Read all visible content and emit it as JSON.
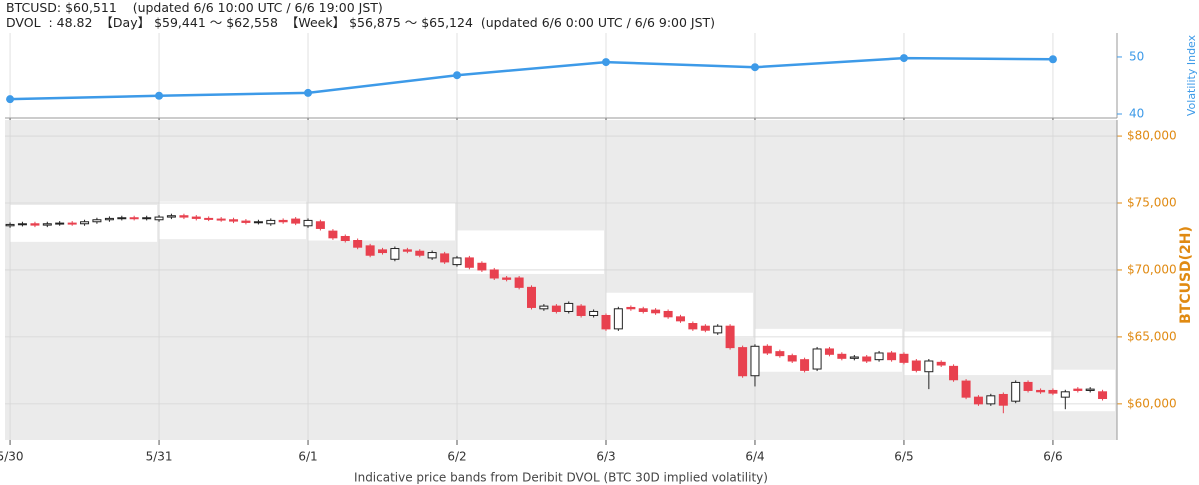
{
  "header": {
    "price": "BTCUSD: $60,511",
    "price_updated": "(updated 6/6 10:00 UTC / 6/6 19:00 JST)",
    "dvol": "DVOL  : 48.82",
    "day_range": "【Day】 $59,441 〜 $62,558",
    "week_range": "【Week】 $56,875 〜 $65,124",
    "dvol_updated": "(updated 6/6 0:00 UTC / 6/6 9:00 JST)"
  },
  "chart_data": [
    {
      "type": "line",
      "y_label": "Volatility Index",
      "color": "#3d9ae8",
      "x": [
        0,
        1,
        2,
        3,
        4,
        5,
        6,
        7
      ],
      "values": [
        42.6,
        43.2,
        43.7,
        46.8,
        49.1,
        48.2,
        49.8,
        49.6
      ],
      "xlim": [
        -0.034,
        7.43
      ],
      "xticks": [
        0,
        1,
        2,
        3,
        4,
        5,
        6,
        7
      ],
      "ylim": [
        39.3,
        54.2
      ],
      "yticks": [
        40,
        50
      ],
      "grid": true
    },
    {
      "type": "candlestick",
      "y_label": "BTCUSD(2H)",
      "x_label": "Indicative price bands from Deribit DVOL (BTC 30D implied volatility)",
      "up_color": "#ffffff",
      "down_color": "#e8414f",
      "band_color": "#ffffff",
      "background": "#ebebeb",
      "xlim": [
        -0.034,
        7.43
      ],
      "xticks": [
        {
          "value": 0,
          "label": "5/30"
        },
        {
          "value": 1,
          "label": "5/31"
        },
        {
          "value": 2,
          "label": "6/1"
        },
        {
          "value": 3,
          "label": "6/2"
        },
        {
          "value": 4,
          "label": "6/3"
        },
        {
          "value": 5,
          "label": "6/4"
        },
        {
          "value": 6,
          "label": "6/5"
        },
        {
          "value": 7,
          "label": "6/6"
        }
      ],
      "ylim": [
        57300,
        81200
      ],
      "yticks": [
        {
          "value": 60000,
          "label": "$60,000"
        },
        {
          "value": 65000,
          "label": "$65,000"
        },
        {
          "value": 70000,
          "label": "$70,000"
        },
        {
          "value": 75000,
          "label": "$75,000"
        },
        {
          "value": 80000,
          "label": "$80,000"
        }
      ],
      "bands": {
        "x": [
          0,
          1,
          2,
          3,
          4,
          5,
          6,
          7
        ],
        "x_end": [
          1,
          2,
          3,
          4,
          5,
          6,
          7,
          7.43
        ],
        "low": [
          72100,
          72300,
          72200,
          69700,
          64950,
          62400,
          62150,
          59450
        ],
        "high": [
          74850,
          75100,
          75000,
          72950,
          68300,
          65600,
          65400,
          62550
        ]
      },
      "x": [
        0,
        0.083,
        0.167,
        0.25,
        0.333,
        0.417,
        0.5,
        0.583,
        0.667,
        0.75,
        0.833,
        0.917,
        1,
        1.083,
        1.167,
        1.25,
        1.333,
        1.417,
        1.5,
        1.583,
        1.667,
        1.75,
        1.833,
        1.917,
        2,
        2.083,
        2.167,
        2.25,
        2.333,
        2.417,
        2.5,
        2.583,
        2.667,
        2.75,
        2.833,
        2.917,
        3,
        3.083,
        3.167,
        3.25,
        3.333,
        3.417,
        3.5,
        3.583,
        3.667,
        3.75,
        3.833,
        3.917,
        4,
        4.083,
        4.167,
        4.25,
        4.333,
        4.417,
        4.5,
        4.583,
        4.667,
        4.75,
        4.833,
        4.917,
        5,
        5.083,
        5.167,
        5.25,
        5.333,
        5.417,
        5.5,
        5.583,
        5.667,
        5.75,
        5.833,
        5.917,
        6,
        6.083,
        6.167,
        6.25,
        6.333,
        6.417,
        6.5,
        6.583,
        6.667,
        6.75,
        6.833,
        6.917,
        7,
        7.083,
        7.167,
        7.25,
        7.333
      ],
      "open": [
        73300,
        73400,
        73450,
        73350,
        73450,
        73500,
        73450,
        73600,
        73750,
        73850,
        73900,
        73850,
        73750,
        73950,
        74050,
        73950,
        73850,
        73800,
        73750,
        73650,
        73550,
        73450,
        73700,
        73800,
        73300,
        73600,
        72900,
        72500,
        72200,
        71800,
        71500,
        70800,
        71500,
        71400,
        70900,
        71200,
        70400,
        70900,
        70500,
        70000,
        69400,
        69400,
        68700,
        67100,
        67300,
        66900,
        67300,
        66600,
        66600,
        65600,
        67200,
        67100,
        67000,
        66900,
        66500,
        66000,
        65800,
        65300,
        65800,
        64200,
        62100,
        64300,
        63900,
        63600,
        63300,
        62600,
        64100,
        63700,
        63400,
        63500,
        63300,
        63800,
        63700,
        63200,
        62400,
        63100,
        62800,
        61700,
        60500,
        60000,
        60700,
        60200,
        61600,
        61000,
        61000,
        60500,
        61100,
        61000,
        60900
      ],
      "high": [
        73550,
        73600,
        73600,
        73600,
        73650,
        73650,
        73750,
        73900,
        74000,
        74050,
        74050,
        74050,
        74100,
        74200,
        74200,
        74100,
        74000,
        73950,
        73900,
        73800,
        73750,
        73850,
        73850,
        73950,
        73850,
        73750,
        73050,
        72650,
        72350,
        71950,
        71650,
        71750,
        71650,
        71550,
        71450,
        71350,
        71050,
        71050,
        70650,
        70150,
        69550,
        69550,
        68850,
        67450,
        67450,
        67650,
        67450,
        67050,
        66750,
        67250,
        67350,
        67250,
        67150,
        67050,
        66650,
        66150,
        65950,
        65950,
        65950,
        64350,
        64450,
        64450,
        64050,
        63750,
        63450,
        64250,
        64250,
        63850,
        63650,
        63650,
        63950,
        63950,
        63850,
        63350,
        63350,
        63250,
        62950,
        61850,
        60650,
        60750,
        60850,
        61750,
        61750,
        61150,
        61150,
        61050,
        61250,
        61250,
        61050
      ],
      "low": [
        73150,
        73250,
        73200,
        73200,
        73300,
        73300,
        73300,
        73450,
        73600,
        73700,
        73700,
        73700,
        73600,
        73800,
        73800,
        73700,
        73650,
        73600,
        73500,
        73400,
        73400,
        73300,
        73450,
        73350,
        73150,
        72950,
        72250,
        72050,
        71550,
        70950,
        71150,
        70650,
        71250,
        70950,
        70750,
        70450,
        70250,
        70050,
        69850,
        69250,
        69150,
        68550,
        67050,
        66950,
        66750,
        66750,
        66450,
        66450,
        65450,
        65450,
        66950,
        66750,
        66650,
        66350,
        66050,
        65450,
        65350,
        65150,
        64050,
        61950,
        61300,
        63650,
        63450,
        63050,
        62350,
        62450,
        63550,
        63250,
        63250,
        63050,
        63150,
        63150,
        62950,
        62350,
        61100,
        62750,
        61650,
        60350,
        59850,
        59850,
        59300,
        60050,
        60850,
        60750,
        60650,
        59600,
        60850,
        60850,
        60250
      ],
      "close": [
        73400,
        73450,
        73350,
        73450,
        73500,
        73450,
        73600,
        73750,
        73850,
        73900,
        73850,
        73900,
        73950,
        74050,
        73950,
        73850,
        73800,
        73750,
        73650,
        73550,
        73600,
        73700,
        73600,
        73500,
        73700,
        73100,
        72400,
        72200,
        71700,
        71100,
        71300,
        71600,
        71400,
        71100,
        71300,
        70600,
        70900,
        70200,
        70000,
        69400,
        69300,
        68700,
        67200,
        67300,
        66900,
        67500,
        66600,
        66900,
        65600,
        67100,
        67100,
        66900,
        66800,
        66500,
        66200,
        65600,
        65500,
        65800,
        64200,
        62100,
        64300,
        63800,
        63600,
        63200,
        62500,
        64100,
        63700,
        63400,
        63500,
        63200,
        63800,
        63300,
        63100,
        62500,
        63200,
        62900,
        61800,
        60500,
        60000,
        60600,
        59900,
        61600,
        61000,
        60900,
        60800,
        60900,
        61000,
        61100,
        60400
      ]
    }
  ]
}
